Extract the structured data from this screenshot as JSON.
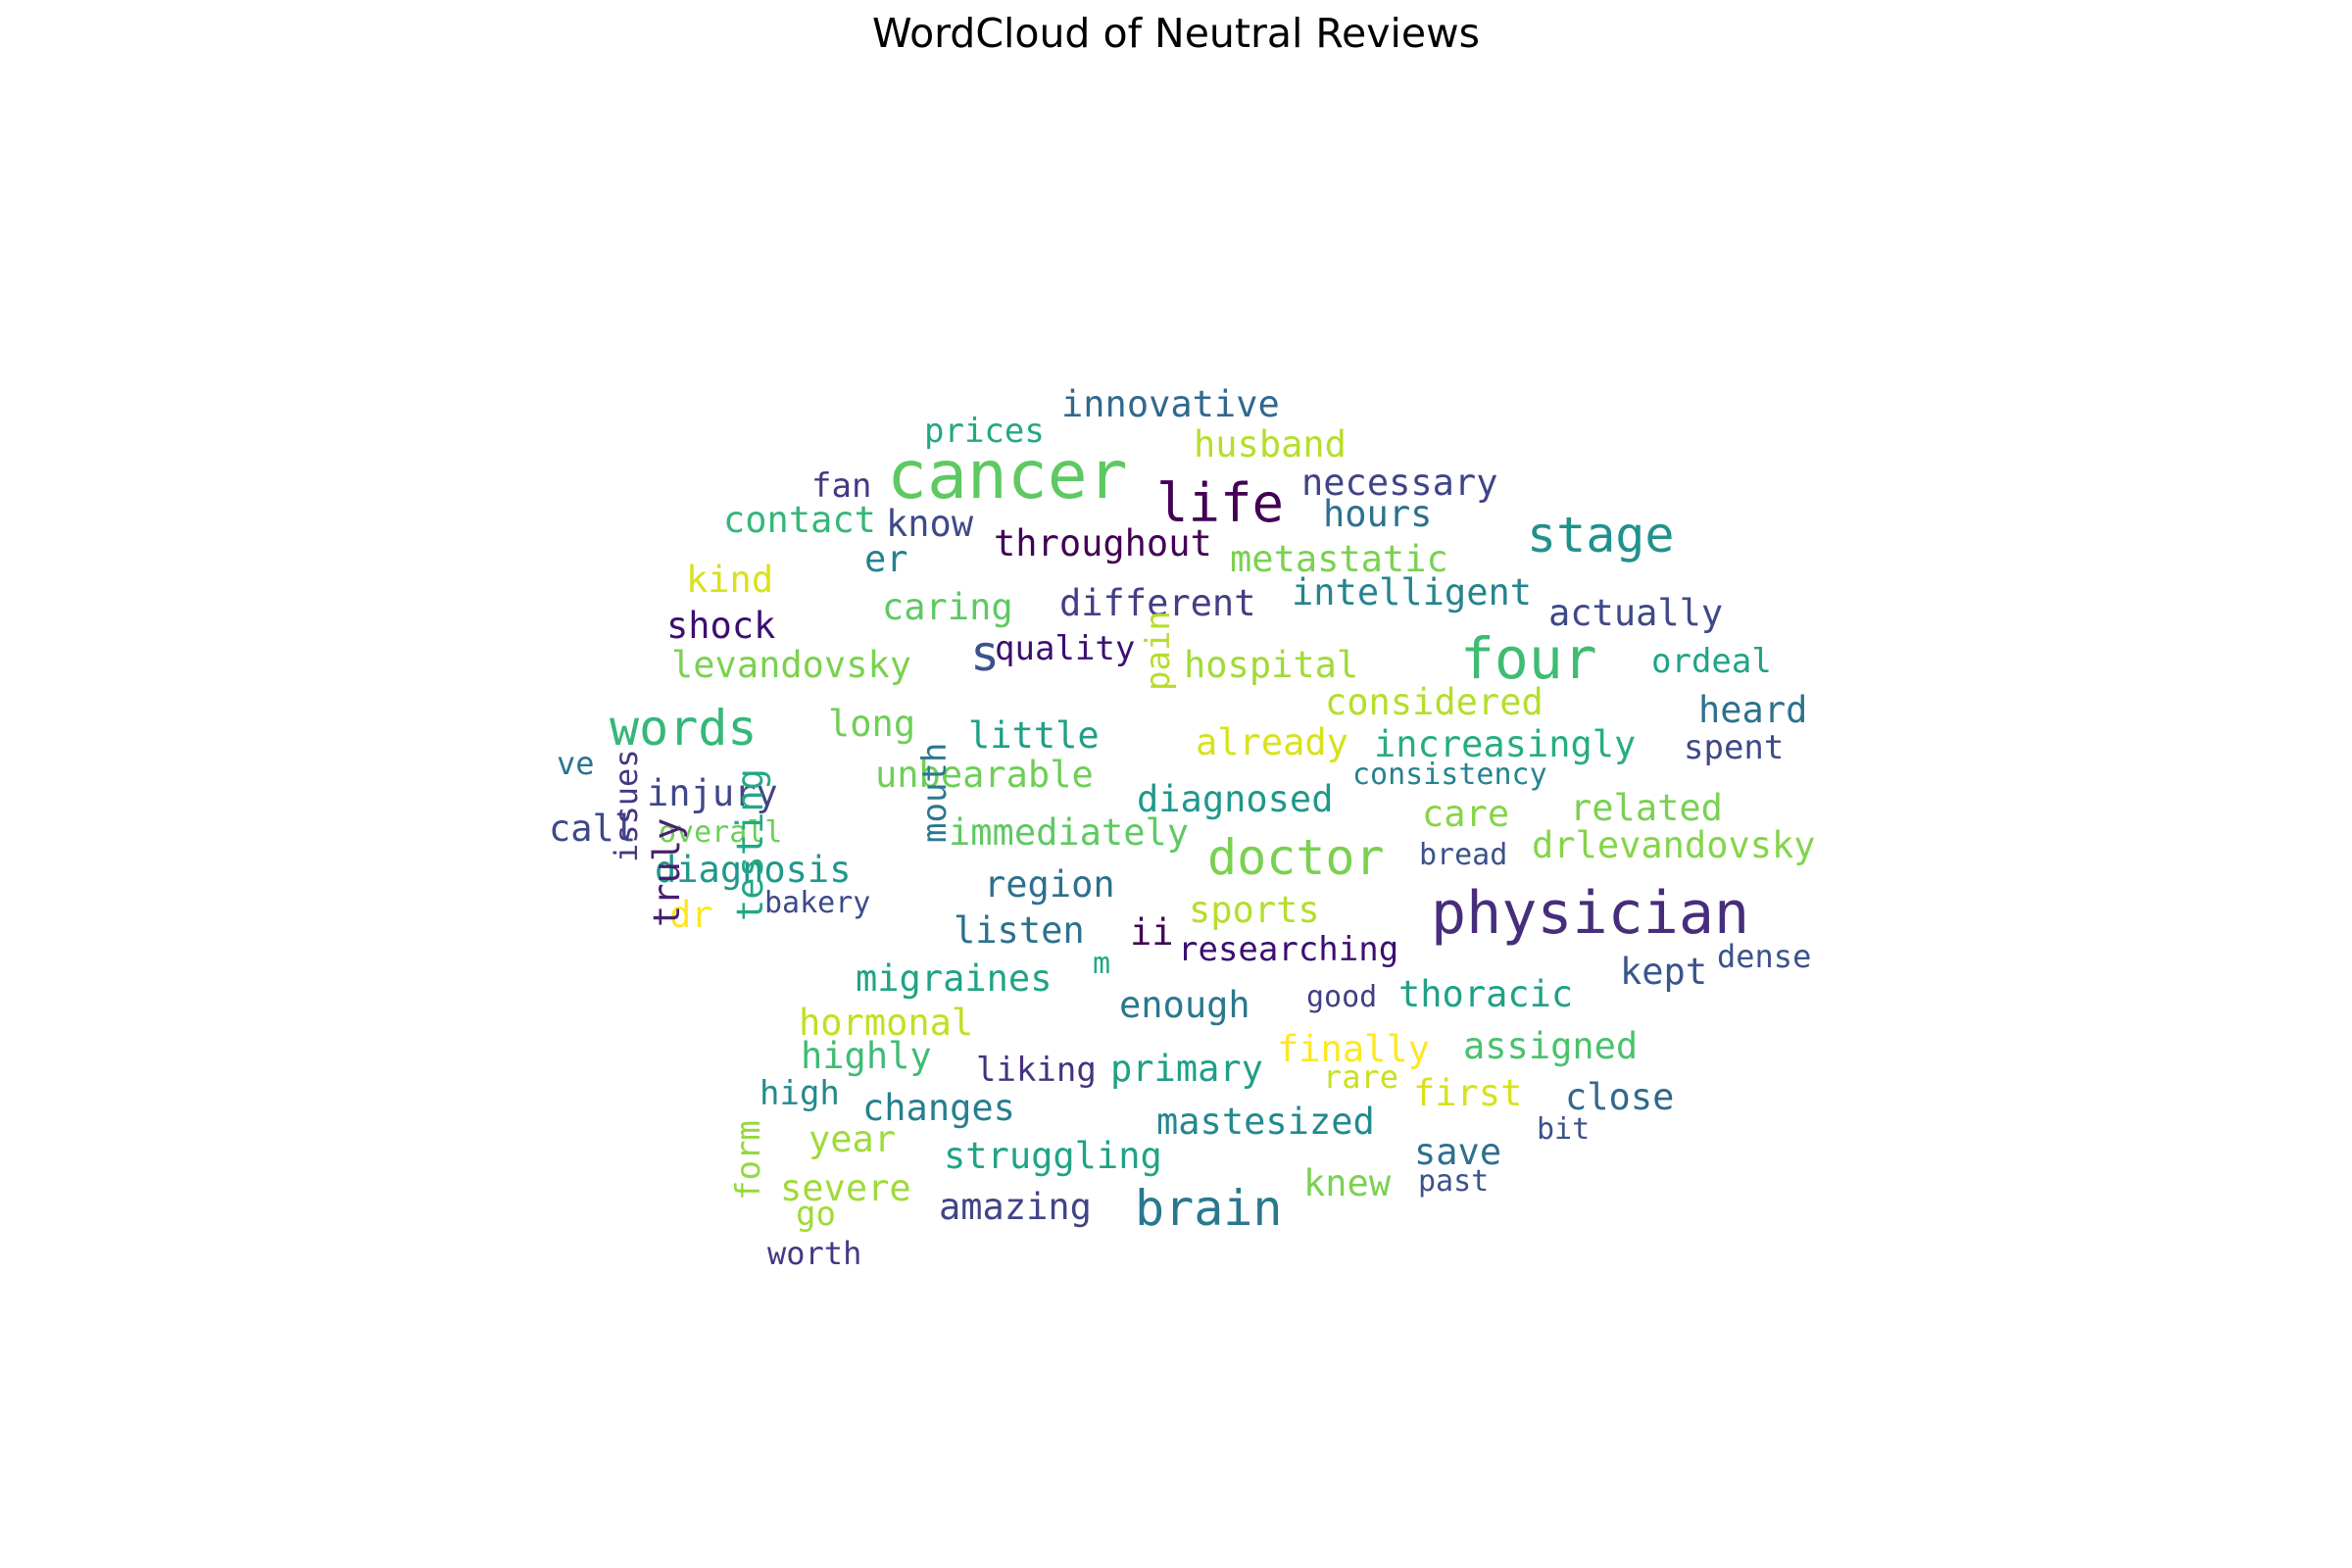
{
  "chart_data": {
    "type": "wordcloud",
    "title": "WordCloud of Neutral Reviews",
    "words": [
      {
        "text": "physician",
        "weight": 60,
        "color": "#472d7b"
      },
      {
        "text": "cancer",
        "weight": 68,
        "color": "#5ec962"
      },
      {
        "text": "four",
        "weight": 58,
        "color": "#3fbc73"
      },
      {
        "text": "stage",
        "weight": 50,
        "color": "#21918c"
      },
      {
        "text": "life",
        "weight": 54,
        "color": "#440154"
      },
      {
        "text": "words",
        "weight": 50,
        "color": "#35b779"
      },
      {
        "text": "doctor",
        "weight": 50,
        "color": "#7ad151"
      },
      {
        "text": "brain",
        "weight": 50,
        "color": "#2a788e"
      },
      {
        "text": "s",
        "weight": 50,
        "color": "#3b528b"
      },
      {
        "text": "innovative",
        "weight": 37,
        "color": "#31688e"
      },
      {
        "text": "prices",
        "weight": 34,
        "color": "#22a884"
      },
      {
        "text": "husband",
        "weight": 37,
        "color": "#b5de2b"
      },
      {
        "text": "fan",
        "weight": 34,
        "color": "#443983"
      },
      {
        "text": "necessary",
        "weight": 37,
        "color": "#414487"
      },
      {
        "text": "contact",
        "weight": 37,
        "color": "#35b779"
      },
      {
        "text": "know",
        "weight": 37,
        "color": "#3e4a89"
      },
      {
        "text": "hours",
        "weight": 37,
        "color": "#2c728e"
      },
      {
        "text": "throughout",
        "weight": 37,
        "color": "#440154"
      },
      {
        "text": "er",
        "weight": 37,
        "color": "#26828e"
      },
      {
        "text": "metastatic",
        "weight": 37,
        "color": "#7ad151"
      },
      {
        "text": "kind",
        "weight": 37,
        "color": "#d8e219"
      },
      {
        "text": "intelligent",
        "weight": 37,
        "color": "#25848e"
      },
      {
        "text": "caring",
        "weight": 37,
        "color": "#5ec962"
      },
      {
        "text": "different",
        "weight": 37,
        "color": "#433e85"
      },
      {
        "text": "shock",
        "weight": 37,
        "color": "#3b0f70"
      },
      {
        "text": "actually",
        "weight": 37,
        "color": "#3e4989"
      },
      {
        "text": "levandovsky",
        "weight": 37,
        "color": "#7ad151"
      },
      {
        "text": "quality",
        "weight": 34,
        "color": "#3b0f70"
      },
      {
        "text": "hospital",
        "weight": 37,
        "color": "#a0da39"
      },
      {
        "text": "ordeal",
        "weight": 34,
        "color": "#20a386"
      },
      {
        "text": "considered",
        "weight": 37,
        "color": "#b5de2b"
      },
      {
        "text": "heard",
        "weight": 37,
        "color": "#2c728e"
      },
      {
        "text": "long",
        "weight": 37,
        "color": "#6ece58"
      },
      {
        "text": "little",
        "weight": 37,
        "color": "#1f9f88"
      },
      {
        "text": "pain",
        "weight": 34,
        "color": "#b5de2b"
      },
      {
        "text": "already",
        "weight": 37,
        "color": "#d8e219"
      },
      {
        "text": "increasingly",
        "weight": 37,
        "color": "#26ad81"
      },
      {
        "text": "spent",
        "weight": 34,
        "color": "#3e4989"
      },
      {
        "text": "ve",
        "weight": 32,
        "color": "#2c728e"
      },
      {
        "text": "unbearable",
        "weight": 37,
        "color": "#6ece58"
      },
      {
        "text": "consistency",
        "weight": 30,
        "color": "#26828e"
      },
      {
        "text": "injury",
        "weight": 37,
        "color": "#404688"
      },
      {
        "text": "diagnosed",
        "weight": 37,
        "color": "#1f988b"
      },
      {
        "text": "related",
        "weight": 37,
        "color": "#7ad151"
      },
      {
        "text": "call",
        "weight": 37,
        "color": "#3e4989"
      },
      {
        "text": "overall",
        "weight": 30,
        "color": "#6ece58"
      },
      {
        "text": "immediately",
        "weight": 37,
        "color": "#5ec962"
      },
      {
        "text": "care",
        "weight": 37,
        "color": "#86d549"
      },
      {
        "text": "drlevandovsky",
        "weight": 37,
        "color": "#84d44b"
      },
      {
        "text": "bread",
        "weight": 30,
        "color": "#3b528b"
      },
      {
        "text": "diagnosis",
        "weight": 37,
        "color": "#1f988b"
      },
      {
        "text": "mouth",
        "weight": 34,
        "color": "#2a788e"
      },
      {
        "text": "region",
        "weight": 37,
        "color": "#2d708e"
      },
      {
        "text": "issues",
        "weight": 32,
        "color": "#453781"
      },
      {
        "text": "bakery",
        "weight": 30,
        "color": "#3e4989"
      },
      {
        "text": "dr",
        "weight": 37,
        "color": "#fde725"
      },
      {
        "text": "sports",
        "weight": 37,
        "color": "#b5de2b"
      },
      {
        "text": "truly",
        "weight": 37,
        "color": "#481f70"
      },
      {
        "text": "testing",
        "weight": 37,
        "color": "#22a884"
      },
      {
        "text": "listen",
        "weight": 37,
        "color": "#2d708e"
      },
      {
        "text": "ii",
        "weight": 37,
        "color": "#440154"
      },
      {
        "text": "researching",
        "weight": 34,
        "color": "#3b0f70"
      },
      {
        "text": "dense",
        "weight": 32,
        "color": "#3b528b"
      },
      {
        "text": "m",
        "weight": 30,
        "color": "#22a884"
      },
      {
        "text": "kept",
        "weight": 37,
        "color": "#39568c"
      },
      {
        "text": "migraines",
        "weight": 37,
        "color": "#20a386"
      },
      {
        "text": "good",
        "weight": 30,
        "color": "#433e85"
      },
      {
        "text": "thoracic",
        "weight": 37,
        "color": "#1fa187"
      },
      {
        "text": "enough",
        "weight": 37,
        "color": "#2a788e"
      },
      {
        "text": "hormonal",
        "weight": 37,
        "color": "#c2df23"
      },
      {
        "text": "finally",
        "weight": 37,
        "color": "#fde725"
      },
      {
        "text": "assigned",
        "weight": 37,
        "color": "#4ac16d"
      },
      {
        "text": "highly",
        "weight": 37,
        "color": "#3fbc73"
      },
      {
        "text": "liking",
        "weight": 34,
        "color": "#46327e"
      },
      {
        "text": "primary",
        "weight": 37,
        "color": "#1f9f88"
      },
      {
        "text": "rare",
        "weight": 32,
        "color": "#c8e020"
      },
      {
        "text": "first",
        "weight": 37,
        "color": "#d8e219"
      },
      {
        "text": "close",
        "weight": 37,
        "color": "#31688e"
      },
      {
        "text": "high",
        "weight": 34,
        "color": "#23898e"
      },
      {
        "text": "changes",
        "weight": 37,
        "color": "#277f8e"
      },
      {
        "text": "mastesized",
        "weight": 37,
        "color": "#23898e"
      },
      {
        "text": "bit",
        "weight": 30,
        "color": "#3b528b"
      },
      {
        "text": "form",
        "weight": 34,
        "color": "#95d840"
      },
      {
        "text": "year",
        "weight": 37,
        "color": "#a0da39"
      },
      {
        "text": "save",
        "weight": 37,
        "color": "#2d708e"
      },
      {
        "text": "struggling",
        "weight": 37,
        "color": "#20a386"
      },
      {
        "text": "past",
        "weight": 30,
        "color": "#3b528b"
      },
      {
        "text": "severe",
        "weight": 37,
        "color": "#a0da39"
      },
      {
        "text": "knew",
        "weight": 37,
        "color": "#7ad151"
      },
      {
        "text": "go",
        "weight": 34,
        "color": "#a0da39"
      },
      {
        "text": "amazing",
        "weight": 37,
        "color": "#414487"
      },
      {
        "text": "worth",
        "weight": 32,
        "color": "#443983"
      }
    ]
  }
}
